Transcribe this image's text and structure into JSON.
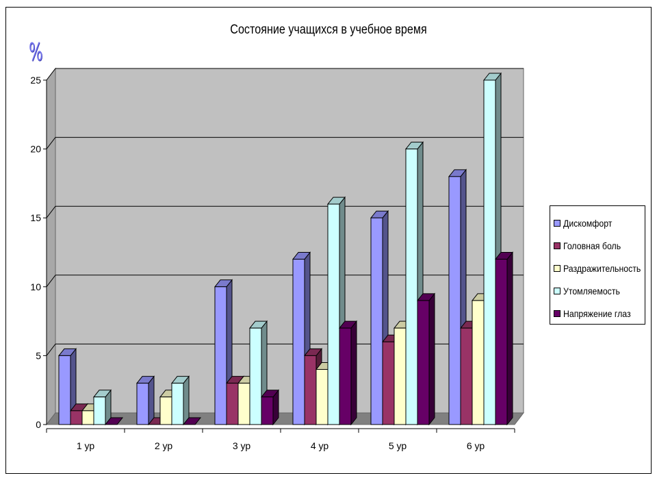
{
  "chart_data": {
    "type": "bar",
    "title": "Состояние учащихся в учебное время",
    "ylabel": "%",
    "xlabel": "",
    "categories": [
      "1 ур",
      "2 ур",
      "3 ур",
      "4 ур",
      "5 ур",
      "6 ур"
    ],
    "series": [
      {
        "name": "Дискомфорт",
        "color": "#9999FF",
        "values": [
          5,
          3,
          10,
          12,
          15,
          18
        ]
      },
      {
        "name": "Головная боль",
        "color": "#993366",
        "values": [
          1,
          0,
          3,
          5,
          6,
          7
        ]
      },
      {
        "name": "Раздражительность",
        "color": "#FFFFCC",
        "values": [
          1,
          2,
          3,
          4,
          7,
          9
        ]
      },
      {
        "name": "Утомляемость",
        "color": "#CCFFFF",
        "values": [
          2,
          3,
          7,
          16,
          20,
          25
        ]
      },
      {
        "name": "Напряжение глаз",
        "color": "#660066",
        "values": [
          0,
          0,
          2,
          7,
          9,
          12
        ]
      }
    ],
    "ylim": [
      0,
      25
    ],
    "yticks": [
      "0",
      "5",
      "10",
      "15",
      "20",
      "25"
    ],
    "grid": true,
    "style": "3d-clustered-column",
    "wall_color": "#C0C0C0",
    "legend": "right"
  }
}
